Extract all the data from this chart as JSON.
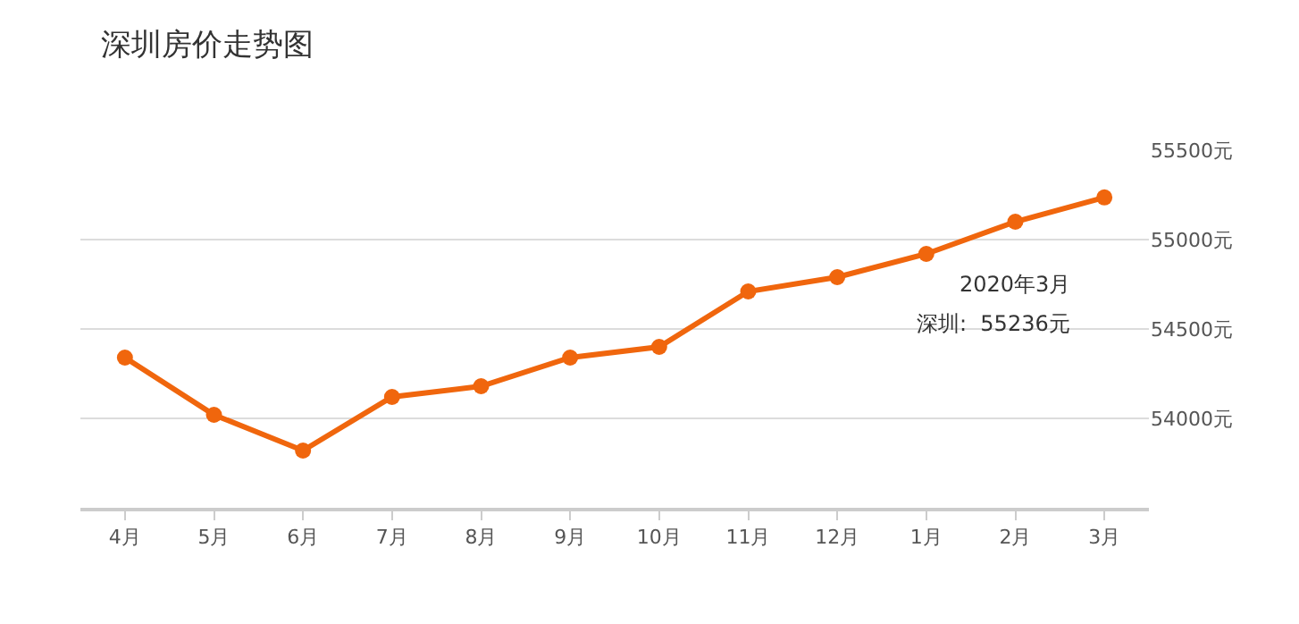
{
  "chart_data": {
    "type": "line",
    "title": "深圳房价走势图",
    "categories": [
      "4月",
      "5月",
      "6月",
      "7月",
      "8月",
      "9月",
      "10月",
      "11月",
      "12月",
      "1月",
      "2月",
      "3月"
    ],
    "series": [
      {
        "color": "#f0660d",
        "values": [
          54340,
          54020,
          53820,
          54120,
          54180,
          54340,
          54400,
          54710,
          54790,
          54920,
          55100,
          55236
        ]
      }
    ],
    "ylim": [
      53500,
      55500
    ],
    "yticks": [
      {
        "value": 54000,
        "label": "54000元"
      },
      {
        "value": 54500,
        "label": "54500元"
      },
      {
        "value": 55000,
        "label": "55000元"
      },
      {
        "value": 55500,
        "label": "55500元"
      }
    ],
    "grid": "y",
    "marker": "circle",
    "line_style": "solid",
    "annotations": [
      "2020年3月",
      "深圳:  55236元"
    ]
  }
}
